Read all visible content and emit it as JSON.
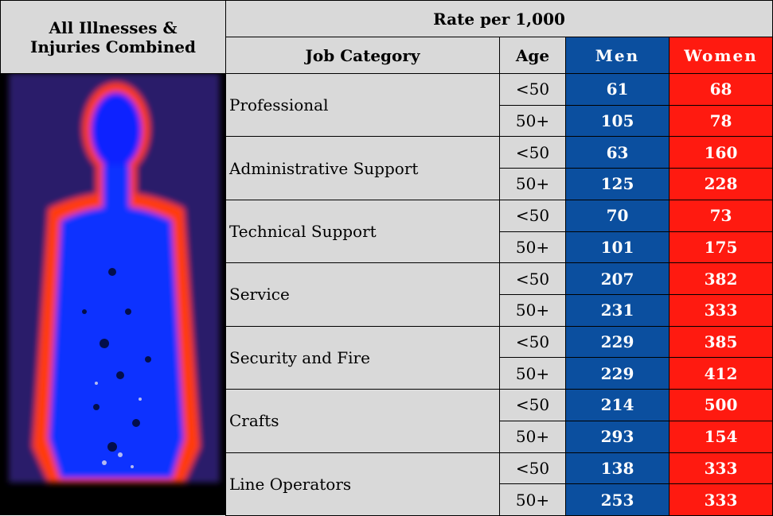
{
  "header": {
    "left_title_lines": [
      "All Illnesses &",
      "Injuries Combined"
    ],
    "rate_title": "Rate per 1,000",
    "columns": [
      "Job Category",
      "Age",
      "Men",
      "Women"
    ]
  },
  "table": {
    "rows": [
      {
        "category": "Professional",
        "ages": [
          "<50",
          "50+"
        ],
        "men": [
          "61",
          "105"
        ],
        "women": [
          "68",
          "78"
        ]
      },
      {
        "category": "Administrative Support",
        "ages": [
          "<50",
          "50+"
        ],
        "men": [
          "63",
          "125"
        ],
        "women": [
          "160",
          "228"
        ]
      },
      {
        "category": "Technical Support",
        "ages": [
          "<50",
          "50+"
        ],
        "men": [
          "70",
          "101"
        ],
        "women": [
          "73",
          "175"
        ]
      },
      {
        "category": "Service",
        "ages": [
          "<50",
          "50+"
        ],
        "men": [
          "207",
          "231"
        ],
        "women": [
          "382",
          "333"
        ]
      },
      {
        "category": "Security and Fire",
        "ages": [
          "<50",
          "50+"
        ],
        "men": [
          "229",
          "229"
        ],
        "women": [
          "385",
          "412"
        ]
      },
      {
        "category": "Crafts",
        "ages": [
          "<50",
          "50+"
        ],
        "men": [
          "214",
          "293"
        ],
        "women": [
          "500",
          "154"
        ]
      },
      {
        "category": "Line Operators",
        "ages": [
          "<50",
          "50+"
        ],
        "men": [
          "138",
          "253"
        ],
        "women": [
          "333",
          "333"
        ]
      }
    ]
  }
}
